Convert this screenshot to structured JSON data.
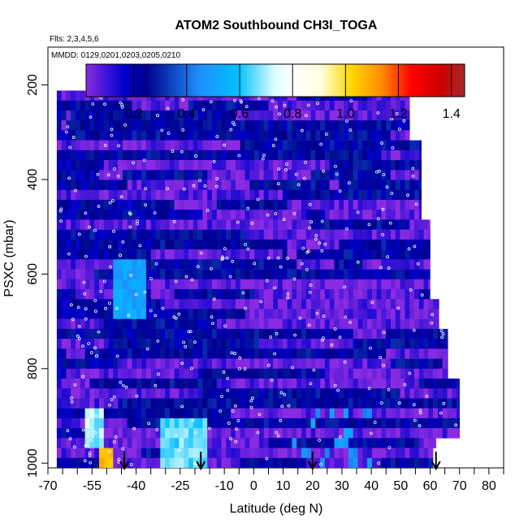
{
  "header": {
    "title": "ATOM2 Southbound CH3I_TOGA",
    "flights_note": "Flts: 2,3,4,5,6",
    "dates_note": "MMDD: 0129,0201,0203,0205,0210"
  },
  "chart_data": {
    "type": "heatmap",
    "title": "ATOM2 Southbound CH3I_TOGA",
    "xlabel": "Latitude (deg N)",
    "ylabel": "PSXC (mbar)",
    "xlim": [
      -70,
      85
    ],
    "ylim": [
      1010,
      120
    ],
    "y_reversed": true,
    "x_ticks": [
      -70,
      -55,
      -40,
      -25,
      -10,
      0,
      10,
      20,
      30,
      40,
      50,
      60,
      70,
      80
    ],
    "x_tick_labels": [
      "-70",
      "-55",
      "-40",
      "-25",
      "-10",
      "0",
      "10",
      "20",
      "30",
      "40",
      "50",
      "60",
      "70",
      "80"
    ],
    "x_minor_ticks": [
      -65,
      -60,
      -50,
      -45,
      -35,
      -30,
      -20,
      -15,
      -5,
      5,
      15,
      25,
      35,
      45,
      55,
      65,
      75,
      85
    ],
    "y_ticks": [
      200,
      400,
      600,
      800,
      1000
    ],
    "y_tick_labels": [
      "200",
      "400",
      "600",
      "800",
      "1000"
    ],
    "colorbar": {
      "range": [
        0.02,
        1.45
      ],
      "ticks": [
        0.2,
        0.4,
        0.6,
        0.8,
        1.0,
        1.2,
        1.4
      ],
      "tick_labels": [
        "0.2",
        "0.4",
        "0.6",
        "0.8",
        "1.0",
        "1.2",
        "1.4"
      ],
      "colors": [
        "#8a2be2",
        "#0000cd",
        "#00008b",
        "#1e90ff",
        "#00bfff",
        "#e0ffff",
        "#ffffe0",
        "#ffd700",
        "#ff8c00",
        "#ff0000",
        "#cc0000",
        "#a52a2a"
      ]
    },
    "flight_legs": [
      {
        "name": "",
        "lat_range": [
          -67,
          53
        ],
        "p_range": [
          210,
          1010
        ]
      },
      {
        "name": "",
        "lat_range": [
          -67,
          58
        ],
        "p_range": [
          210,
          500
        ]
      },
      {
        "name": "",
        "lat_range": [
          -67,
          62
        ],
        "p_range": [
          500,
          1000
        ]
      },
      {
        "name": "",
        "lat_range": [
          -67,
          70
        ],
        "p_range": [
          700,
          920
        ]
      }
    ],
    "profile_arrows_lat": [
      -44,
      -18,
      20,
      62
    ],
    "highlights": [
      {
        "lat_range": [
          -54,
          -49
        ],
        "p_range": [
          955,
          1010
        ],
        "value": 1.05
      },
      {
        "lat_range": [
          -58,
          -51
        ],
        "p_range": [
          880,
          960
        ],
        "value": 0.7
      },
      {
        "lat_range": [
          -32,
          -17
        ],
        "p_range": [
          890,
          1010
        ],
        "value": 0.65
      },
      {
        "lat_range": [
          -48,
          -38
        ],
        "p_range": [
          560,
          680
        ],
        "value": 0.5
      }
    ]
  }
}
